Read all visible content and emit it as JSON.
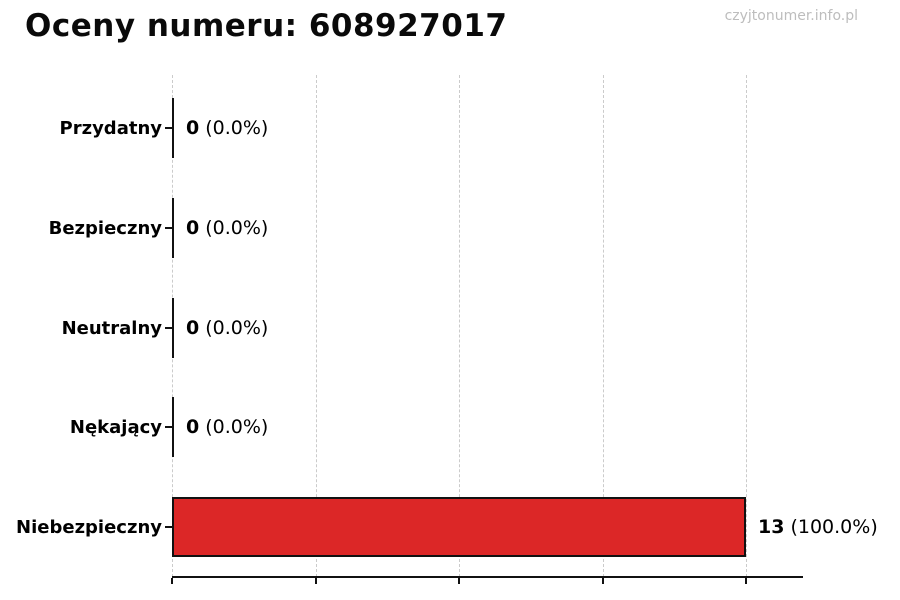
{
  "page": {
    "title": "Oceny numeru: 608927017",
    "watermark": "czyjtonumer.info.pl"
  },
  "chart_data": {
    "type": "bar",
    "orientation": "horizontal",
    "title": "Oceny numeru: 608927017",
    "categories": [
      "Przydatny",
      "Bezpieczny",
      "Neutralny",
      "Nękający",
      "Niebezpieczny"
    ],
    "values": [
      0,
      0,
      0,
      0,
      13
    ],
    "count_labels": [
      "0",
      "0",
      "0",
      "0",
      "13"
    ],
    "pct_labels": [
      "(0.0%)",
      "(0.0%)",
      "(0.0%)",
      "(0.0%)",
      "(100.0%)"
    ],
    "total_ratings": 13,
    "xlim": [
      0,
      13
    ],
    "gridline_values": [
      0,
      3.25,
      6.5,
      9.75,
      13
    ],
    "x_tick_labels": [],
    "ylabel": "",
    "xlabel": "",
    "grid": "vertical-dashed",
    "legend": "none",
    "bar_color": "#dc2727",
    "bar_edge_color": "#111111",
    "grid_color": "#cbcbcb",
    "watermark_color": "#bdbdbd"
  }
}
